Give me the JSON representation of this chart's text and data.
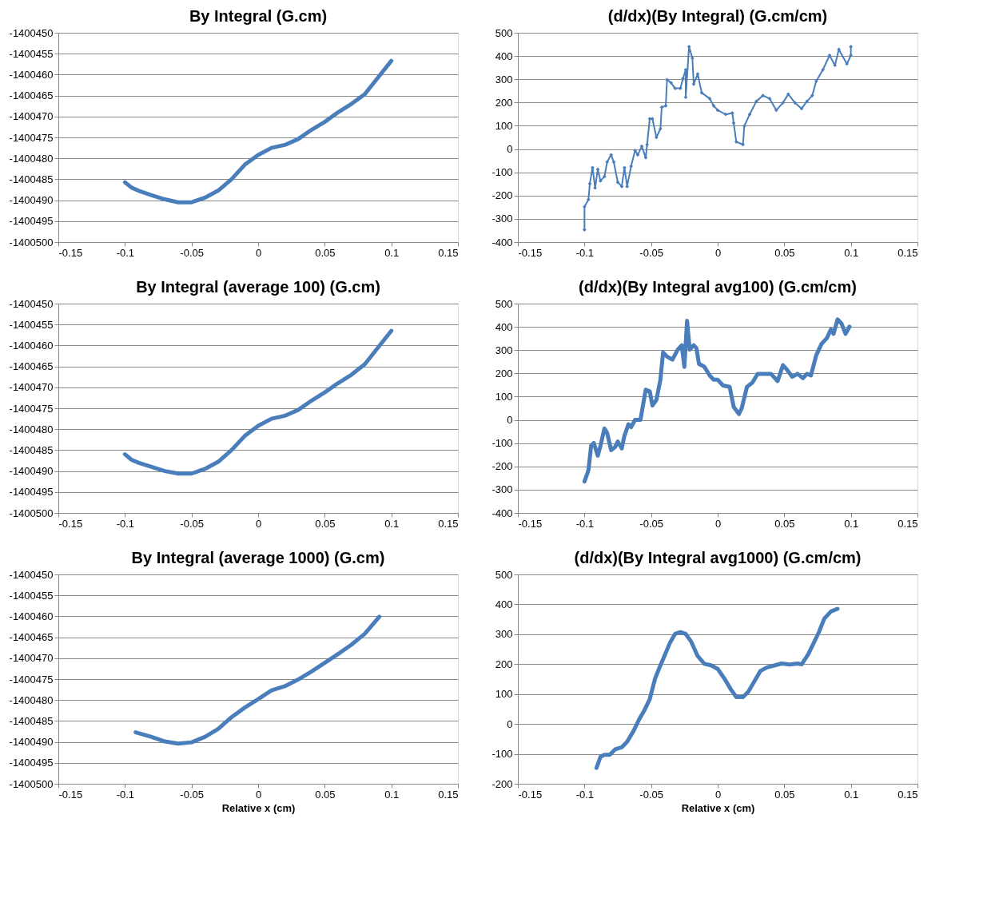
{
  "chart_data": [
    {
      "type": "line",
      "title": "By Integral (G.cm)",
      "grid": "y",
      "marker": "none",
      "line_style": "solid",
      "xlim": [
        -0.15,
        0.15
      ],
      "xticks": [
        -0.15,
        -0.1,
        -0.05,
        0,
        0.05,
        0.1,
        0.15
      ],
      "ylim": [
        -1400500,
        -1400450
      ],
      "yticks": [
        -1400500,
        -1400495,
        -1400490,
        -1400485,
        -1400480,
        -1400475,
        -1400470,
        -1400465,
        -1400460,
        -1400455,
        -1400450
      ],
      "x": [
        -0.1,
        -0.095,
        -0.09,
        -0.08,
        -0.07,
        -0.06,
        -0.05,
        -0.04,
        -0.03,
        -0.02,
        -0.01,
        0,
        0.01,
        0.02,
        0.03,
        0.04,
        0.05,
        0.06,
        0.07,
        0.08,
        0.09,
        0.1
      ],
      "series": [
        {
          "color": "#4a7ebb",
          "values": [
            -1400485.7,
            -1400487,
            -1400487.7,
            -1400488.8,
            -1400489.8,
            -1400490.5,
            -1400490.5,
            -1400489.4,
            -1400487.7,
            -1400485,
            -1400481.5,
            -1400479.2,
            -1400477.5,
            -1400476.8,
            -1400475.4,
            -1400473.2,
            -1400471.3,
            -1400469,
            -1400467,
            -1400464.7,
            -1400460.7,
            -1400456.7
          ]
        }
      ]
    },
    {
      "type": "line",
      "title": "(d/dx)(By Integral) (G.cm/cm)",
      "grid": "y",
      "marker": "diamond",
      "line_style": "solid",
      "xlim": [
        -0.15,
        0.15
      ],
      "xticks": [
        -0.15,
        -0.1,
        -0.05,
        0,
        0.05,
        0.1,
        0.15
      ],
      "ylim": [
        -400,
        500
      ],
      "yticks": [
        -400,
        -300,
        -200,
        -100,
        0,
        100,
        200,
        300,
        400,
        500
      ],
      "x": [
        -0.1,
        -0.1,
        -0.097,
        -0.096,
        -0.094,
        -0.092,
        -0.09,
        -0.088,
        -0.085,
        -0.083,
        -0.08,
        -0.078,
        -0.075,
        -0.072,
        -0.07,
        -0.068,
        -0.065,
        -0.062,
        -0.06,
        -0.057,
        -0.054,
        -0.053,
        -0.051,
        -0.049,
        -0.046,
        -0.043,
        -0.042,
        -0.039,
        -0.038,
        -0.035,
        -0.032,
        -0.028,
        -0.026,
        -0.024,
        -0.024,
        -0.0215,
        -0.019,
        -0.018,
        -0.015,
        -0.012,
        -0.006,
        -0.003,
        0,
        0.006,
        0.011,
        0.012,
        0.014,
        0.019,
        0.02,
        0.024,
        0.029,
        0.034,
        0.039,
        0.044,
        0.049,
        0.053,
        0.058,
        0.063,
        0.067,
        0.071,
        0.074,
        0.079,
        0.084,
        0.088,
        0.091,
        0.097,
        0.1,
        0.1
      ],
      "series": [
        {
          "color": "#4a7ebb",
          "values": [
            -347,
            -248,
            -217,
            -149,
            -80,
            -167,
            -87,
            -137,
            -118,
            -56,
            -25,
            -56,
            -143,
            -161,
            -80,
            -161,
            -74,
            -6,
            -25,
            12,
            -37,
            19,
            130,
            130,
            50,
            87,
            180,
            186,
            298,
            285,
            261,
            261,
            304,
            341,
            223,
            440,
            391,
            279,
            323,
            242,
            217,
            186,
            167,
            149,
            155,
            112,
            31,
            19,
            99,
            149,
            205,
            230,
            217,
            167,
            199,
            236,
            199,
            174,
            205,
            230,
            292,
            341,
            403,
            360,
            428,
            366,
            403,
            440
          ]
        }
      ]
    },
    {
      "type": "line",
      "title": "By Integral (average 100) (G.cm)",
      "grid": "y",
      "marker": "none",
      "line_style": "solid",
      "xlim": [
        -0.15,
        0.15
      ],
      "xticks": [
        -0.15,
        -0.1,
        -0.05,
        0,
        0.05,
        0.1,
        0.15
      ],
      "ylim": [
        -1400500,
        -1400450
      ],
      "yticks": [
        -1400500,
        -1400495,
        -1400490,
        -1400485,
        -1400480,
        -1400475,
        -1400470,
        -1400465,
        -1400460,
        -1400455,
        -1400450
      ],
      "x": [
        -0.1,
        -0.095,
        -0.09,
        -0.08,
        -0.07,
        -0.06,
        -0.05,
        -0.04,
        -0.03,
        -0.02,
        -0.01,
        0,
        0.01,
        0.02,
        0.03,
        0.04,
        0.05,
        0.06,
        0.07,
        0.08,
        0.09,
        0.1
      ],
      "series": [
        {
          "color": "#4a7ebb",
          "values": [
            -1400486,
            -1400487.3,
            -1400488,
            -1400489,
            -1400490,
            -1400490.6,
            -1400490.6,
            -1400489.5,
            -1400487.8,
            -1400485,
            -1400481.6,
            -1400479.2,
            -1400477.5,
            -1400476.8,
            -1400475.4,
            -1400473.2,
            -1400471.2,
            -1400469,
            -1400467,
            -1400464.5,
            -1400460.5,
            -1400456.5
          ]
        }
      ]
    },
    {
      "type": "line",
      "title": "(d/dx)(By Integral avg100) (G.cm/cm)",
      "grid": "y",
      "marker": "none",
      "line_style": "solid",
      "xlim": [
        -0.15,
        0.15
      ],
      "xticks": [
        -0.15,
        -0.1,
        -0.05,
        0,
        0.05,
        0.1,
        0.15
      ],
      "ylim": [
        -400,
        500
      ],
      "yticks": [
        -400,
        -300,
        -200,
        -100,
        0,
        100,
        200,
        300,
        400,
        500
      ],
      "x": [
        -0.1,
        -0.097,
        -0.095,
        -0.093,
        -0.09,
        -0.088,
        -0.085,
        -0.083,
        -0.08,
        -0.077,
        -0.075,
        -0.072,
        -0.07,
        -0.067,
        -0.065,
        -0.062,
        -0.058,
        -0.054,
        -0.051,
        -0.049,
        -0.046,
        -0.043,
        -0.041,
        -0.038,
        -0.034,
        -0.03,
        -0.027,
        -0.025,
        -0.023,
        -0.021,
        -0.018,
        -0.016,
        -0.014,
        -0.012,
        -0.01,
        -0.006,
        -0.003,
        0,
        0.004,
        0.009,
        0.012,
        0.016,
        0.018,
        0.022,
        0.026,
        0.03,
        0.035,
        0.04,
        0.045,
        0.049,
        0.052,
        0.056,
        0.06,
        0.064,
        0.067,
        0.07,
        0.074,
        0.078,
        0.082,
        0.085,
        0.087,
        0.09,
        0.093,
        0.096,
        0.099
      ],
      "series": [
        {
          "color": "#4a7ebb",
          "values": [
            -265,
            -216,
            -111,
            -99,
            -154,
            -111,
            -37,
            -56,
            -130,
            -117,
            -93,
            -123,
            -68,
            -19,
            -31,
            0,
            0,
            130,
            123,
            62,
            86,
            173,
            290,
            272,
            259,
            302,
            321,
            228,
            426,
            302,
            321,
            309,
            240,
            235,
            228,
            191,
            173,
            173,
            148,
            142,
            56,
            25,
            49,
            142,
            160,
            198,
            198,
            198,
            167,
            235,
            216,
            185,
            198,
            179,
            198,
            191,
            278,
            327,
            352,
            389,
            370,
            432,
            414,
            370,
            401
          ]
        }
      ]
    },
    {
      "type": "line",
      "title": "By Integral (average 1000) (G.cm)",
      "xlabel": "Relative x (cm)",
      "grid": "y",
      "marker": "none",
      "line_style": "solid",
      "xlim": [
        -0.15,
        0.15
      ],
      "xticks": [
        -0.15,
        -0.1,
        -0.05,
        0,
        0.05,
        0.1,
        0.15
      ],
      "ylim": [
        -1400500,
        -1400450
      ],
      "yticks": [
        -1400500,
        -1400495,
        -1400490,
        -1400485,
        -1400480,
        -1400475,
        -1400470,
        -1400465,
        -1400460,
        -1400455,
        -1400450
      ],
      "x": [
        -0.092,
        -0.08,
        -0.07,
        -0.06,
        -0.05,
        -0.04,
        -0.03,
        -0.02,
        -0.01,
        0,
        0.01,
        0.02,
        0.03,
        0.04,
        0.05,
        0.06,
        0.07,
        0.08,
        0.091
      ],
      "series": [
        {
          "color": "#4a7ebb",
          "values": [
            -1400487.7,
            -1400488.8,
            -1400489.9,
            -1400490.4,
            -1400490.1,
            -1400488.8,
            -1400486.9,
            -1400484.1,
            -1400481.8,
            -1400479.8,
            -1400477.7,
            -1400476.7,
            -1400475.1,
            -1400473.2,
            -1400471.1,
            -1400469,
            -1400466.8,
            -1400464.2,
            -1400460.1
          ]
        }
      ]
    },
    {
      "type": "line",
      "title": "(d/dx)(By Integral avg1000) (G.cm/cm)",
      "xlabel": "Relative x (cm)",
      "grid": "y",
      "marker": "none",
      "line_style": "solid",
      "xlim": [
        -0.15,
        0.15
      ],
      "xticks": [
        -0.15,
        -0.1,
        -0.05,
        0,
        0.05,
        0.1,
        0.15
      ],
      "ylim": [
        -200,
        500
      ],
      "yticks": [
        -200,
        -100,
        0,
        100,
        200,
        300,
        400,
        500
      ],
      "x": [
        -0.091,
        -0.088,
        -0.085,
        -0.081,
        -0.077,
        -0.072,
        -0.068,
        -0.063,
        -0.059,
        -0.055,
        -0.051,
        -0.047,
        -0.043,
        -0.04,
        -0.036,
        -0.032,
        -0.028,
        -0.024,
        -0.02,
        -0.015,
        -0.01,
        -0.005,
        0,
        0.005,
        0.01,
        0.014,
        0.019,
        0.023,
        0.028,
        0.032,
        0.037,
        0.043,
        0.048,
        0.054,
        0.06,
        0.063,
        0.068,
        0.072,
        0.076,
        0.08,
        0.085,
        0.09
      ],
      "series": [
        {
          "color": "#4a7ebb",
          "values": [
            -147,
            -110,
            -103,
            -103,
            -85,
            -78,
            -60,
            -22,
            15,
            46,
            83,
            152,
            196,
            227,
            270,
            301,
            307,
            301,
            276,
            227,
            201,
            196,
            184,
            152,
            115,
            90,
            90,
            108,
            146,
            177,
            189,
            196,
            202,
            199,
            202,
            199,
            233,
            270,
            307,
            352,
            376,
            385
          ]
        }
      ]
    }
  ]
}
